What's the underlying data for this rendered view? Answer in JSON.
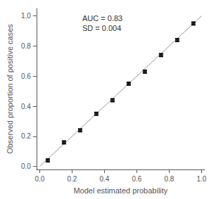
{
  "chart_data": {
    "type": "scatter",
    "xlabel": "Model estimated probability",
    "ylabel": "Observed proportion of positive cases",
    "annotation": "AUC = 0.83\nSD = 0.004",
    "series": [
      {
        "type": "scatter",
        "color": "#000000",
        "marker": "square",
        "x": [
          0.05,
          0.15,
          0.25,
          0.35,
          0.45,
          0.55,
          0.65,
          0.75,
          0.85,
          0.95
        ],
        "values": [
          0.04,
          0.16,
          0.24,
          0.35,
          0.44,
          0.55,
          0.63,
          0.74,
          0.84,
          0.95
        ],
        "errors": [
          0.01,
          0.01,
          0.01,
          0.01,
          0.01,
          0.01,
          0.01,
          0.01,
          0.01,
          0.01
        ]
      },
      {
        "type": "line",
        "color": "#999999",
        "line_style": "solid",
        "x": [
          0.0,
          1.0
        ],
        "values": [
          0.0,
          1.0
        ]
      }
    ],
    "xlim": [
      -0.02,
      1.02
    ],
    "ylim": [
      -0.02,
      1.05
    ],
    "xticks": [
      {
        "value": 0,
        "label": "0.0"
      },
      0.2,
      0.4,
      0.6,
      0.8,
      {
        "value": 1,
        "label": "1.0"
      }
    ],
    "yticks": [
      {
        "value": 0,
        "label": "0.0"
      },
      0.2,
      0.4,
      0.6,
      0.8,
      {
        "value": 1,
        "label": "1.0"
      }
    ],
    "grid": false
  }
}
